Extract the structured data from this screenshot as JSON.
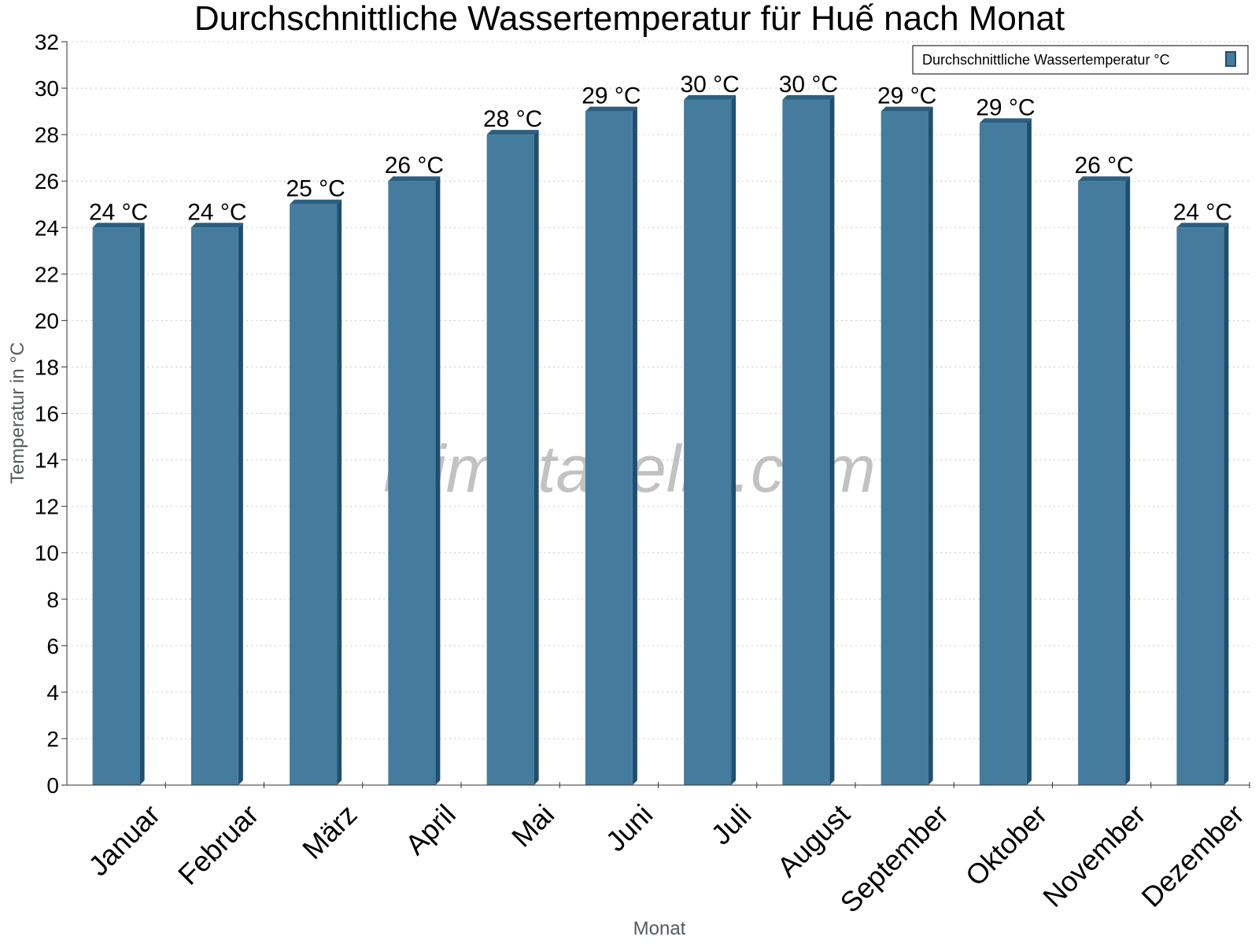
{
  "chart_data": {
    "type": "bar",
    "title": "Durchschnittliche Wassertemperatur für Huế nach Monat",
    "xlabel": "Monat",
    "ylabel": "Temperatur in °C",
    "categories": [
      "Januar",
      "Februar",
      "März",
      "April",
      "Mai",
      "Juni",
      "Juli",
      "August",
      "September",
      "Oktober",
      "November",
      "Dezember"
    ],
    "series": [
      {
        "name": "Durchschnittliche Wassertemperatur °C",
        "values": [
          24,
          24,
          25,
          26,
          28,
          29,
          29.5,
          29.5,
          29,
          28.5,
          26,
          24
        ],
        "labels": [
          "24 °C",
          "24 °C",
          "25 °C",
          "26 °C",
          "28 °C",
          "29 °C",
          "30 °C",
          "30 °C",
          "29 °C",
          "29 °C",
          "26 °C",
          "24 °C"
        ]
      }
    ],
    "ylim": [
      0,
      32
    ],
    "ytick_step": 2,
    "grid": true,
    "legend": "top-right",
    "colors": {
      "bar": "#457b9d",
      "bar_edge": "#1e4f6e",
      "bar_top": "#2b5f80"
    }
  },
  "watermark": "klimatabelle.com"
}
